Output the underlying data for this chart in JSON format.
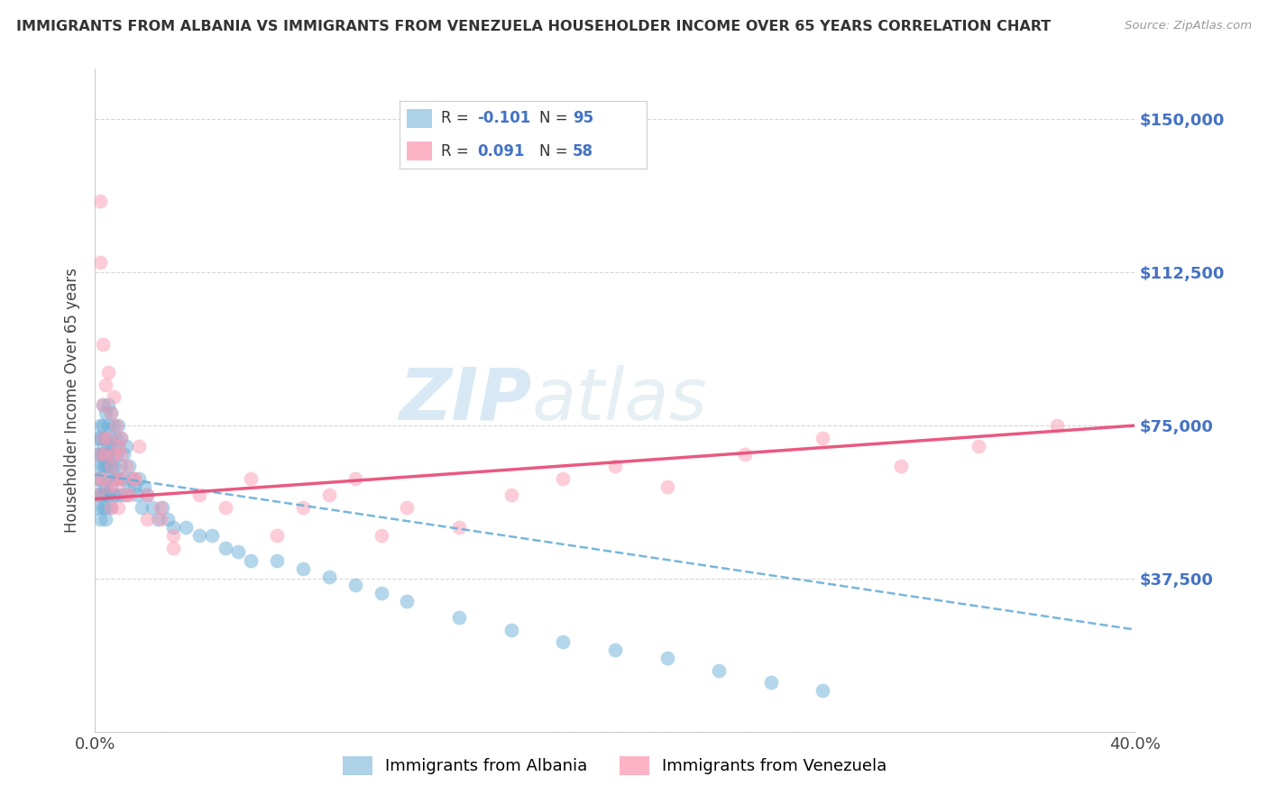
{
  "title": "IMMIGRANTS FROM ALBANIA VS IMMIGRANTS FROM VENEZUELA HOUSEHOLDER INCOME OVER 65 YEARS CORRELATION CHART",
  "source": "Source: ZipAtlas.com",
  "ylabel": "Householder Income Over 65 years",
  "xlim": [
    0.0,
    0.4
  ],
  "ylim": [
    0,
    162500
  ],
  "xticks": [
    0.0,
    0.05,
    0.1,
    0.15,
    0.2,
    0.25,
    0.3,
    0.35,
    0.4
  ],
  "ytick_vals": [
    0,
    37500,
    75000,
    112500,
    150000
  ],
  "ytick_labels": [
    "",
    "$37,500",
    "$75,000",
    "$112,500",
    "$150,000"
  ],
  "color_albania": "#6baed6",
  "color_venezuela": "#fb9ab4",
  "r_albania": -0.101,
  "n_albania": 95,
  "r_venezuela": 0.091,
  "n_venezuela": 58,
  "legend_label_albania": "Immigrants from Albania",
  "legend_label_venezuela": "Immigrants from Venezuela",
  "watermark_zip": "ZIP",
  "watermark_atlas": "atlas",
  "albania_x": [
    0.001,
    0.001,
    0.001,
    0.001,
    0.001,
    0.002,
    0.002,
    0.002,
    0.002,
    0.002,
    0.002,
    0.002,
    0.003,
    0.003,
    0.003,
    0.003,
    0.003,
    0.003,
    0.003,
    0.003,
    0.003,
    0.004,
    0.004,
    0.004,
    0.004,
    0.004,
    0.004,
    0.004,
    0.004,
    0.005,
    0.005,
    0.005,
    0.005,
    0.005,
    0.005,
    0.005,
    0.006,
    0.006,
    0.006,
    0.006,
    0.006,
    0.006,
    0.007,
    0.007,
    0.007,
    0.007,
    0.007,
    0.008,
    0.008,
    0.008,
    0.008,
    0.009,
    0.009,
    0.009,
    0.01,
    0.01,
    0.01,
    0.011,
    0.011,
    0.012,
    0.012,
    0.013,
    0.013,
    0.014,
    0.015,
    0.016,
    0.017,
    0.018,
    0.019,
    0.02,
    0.022,
    0.024,
    0.026,
    0.028,
    0.03,
    0.035,
    0.04,
    0.045,
    0.05,
    0.055,
    0.06,
    0.07,
    0.08,
    0.09,
    0.1,
    0.11,
    0.12,
    0.14,
    0.16,
    0.18,
    0.2,
    0.22,
    0.24,
    0.26,
    0.28
  ],
  "albania_y": [
    68000,
    62000,
    72000,
    58000,
    55000,
    75000,
    68000,
    62000,
    58000,
    72000,
    65000,
    52000,
    80000,
    72000,
    68000,
    65000,
    60000,
    58000,
    55000,
    75000,
    70000,
    78000,
    72000,
    68000,
    65000,
    60000,
    58000,
    55000,
    52000,
    80000,
    75000,
    70000,
    68000,
    65000,
    62000,
    58000,
    78000,
    72000,
    68000,
    65000,
    60000,
    55000,
    75000,
    70000,
    65000,
    62000,
    58000,
    72000,
    68000,
    62000,
    58000,
    75000,
    70000,
    62000,
    72000,
    65000,
    58000,
    68000,
    62000,
    70000,
    58000,
    65000,
    60000,
    62000,
    60000,
    58000,
    62000,
    55000,
    60000,
    58000,
    55000,
    52000,
    55000,
    52000,
    50000,
    50000,
    48000,
    48000,
    45000,
    44000,
    42000,
    42000,
    40000,
    38000,
    36000,
    34000,
    32000,
    28000,
    25000,
    22000,
    20000,
    18000,
    15000,
    12000,
    10000
  ],
  "venezuela_x": [
    0.001,
    0.001,
    0.002,
    0.002,
    0.002,
    0.003,
    0.003,
    0.003,
    0.003,
    0.004,
    0.004,
    0.005,
    0.005,
    0.005,
    0.006,
    0.006,
    0.007,
    0.007,
    0.008,
    0.008,
    0.009,
    0.009,
    0.01,
    0.01,
    0.012,
    0.013,
    0.015,
    0.017,
    0.02,
    0.025,
    0.03,
    0.04,
    0.05,
    0.06,
    0.07,
    0.08,
    0.09,
    0.1,
    0.11,
    0.12,
    0.14,
    0.16,
    0.18,
    0.2,
    0.22,
    0.25,
    0.28,
    0.31,
    0.34,
    0.37,
    0.006,
    0.008,
    0.01,
    0.012,
    0.015,
    0.02,
    0.025,
    0.03
  ],
  "venezuela_y": [
    62000,
    58000,
    130000,
    68000,
    115000,
    80000,
    72000,
    95000,
    62000,
    85000,
    68000,
    88000,
    72000,
    60000,
    78000,
    65000,
    82000,
    68000,
    75000,
    60000,
    70000,
    55000,
    72000,
    62000,
    65000,
    58000,
    62000,
    70000,
    58000,
    52000,
    48000,
    58000,
    55000,
    62000,
    48000,
    55000,
    58000,
    62000,
    48000,
    55000,
    50000,
    58000,
    62000,
    65000,
    60000,
    68000,
    72000,
    65000,
    70000,
    75000,
    55000,
    62000,
    68000,
    58000,
    62000,
    52000,
    55000,
    45000
  ]
}
